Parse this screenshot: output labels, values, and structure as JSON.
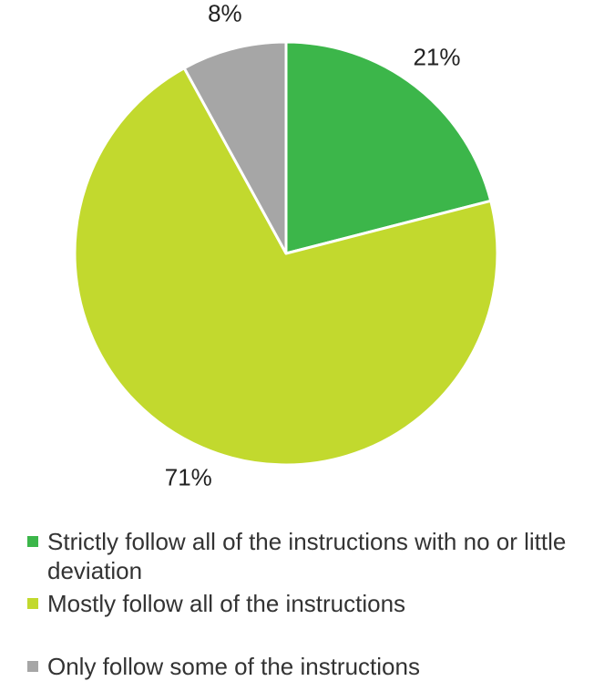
{
  "chart_data": {
    "type": "pie",
    "start_angle_deg": 0,
    "direction": "clockwise",
    "slices": [
      {
        "label": "Strictly follow all of the instructions with no or little deviation",
        "value": 21,
        "value_label": "21%",
        "color": "#3cb64a"
      },
      {
        "label": "Mostly follow all of the instructions",
        "value": 71,
        "value_label": "71%",
        "color": "#c2d92e"
      },
      {
        "label": "Only follow some of the instructions",
        "value": 8,
        "value_label": "8%",
        "color": "#a6a6a6"
      }
    ],
    "legend_position": "bottom"
  }
}
